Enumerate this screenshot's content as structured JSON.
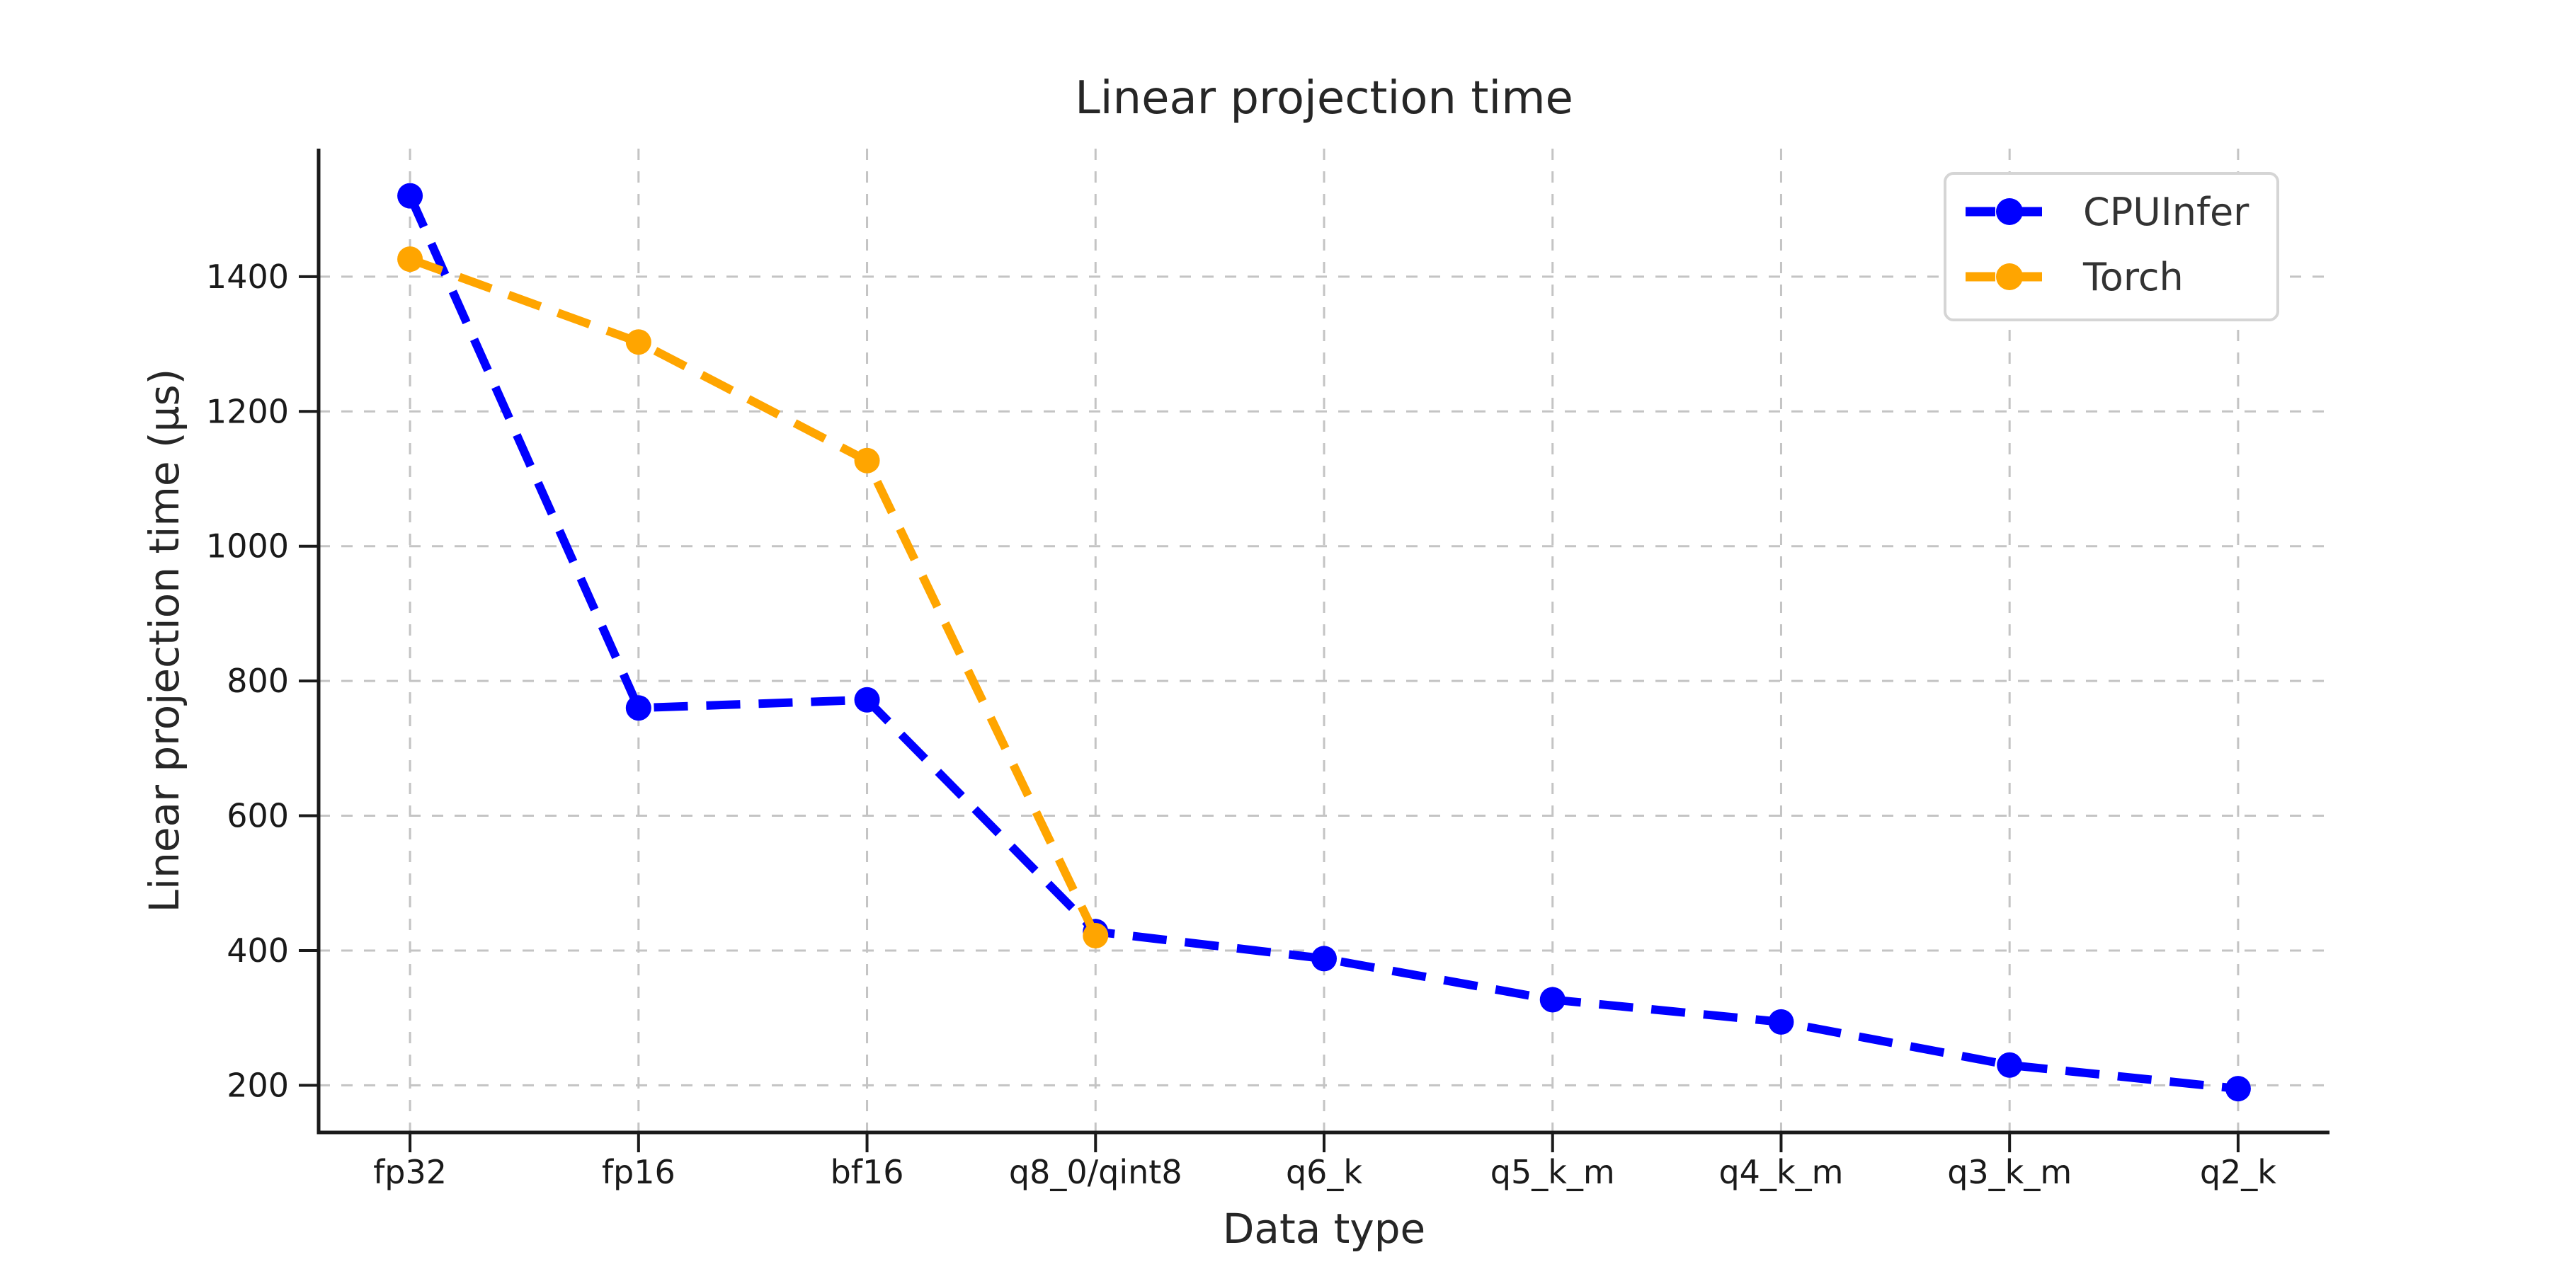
{
  "chart_data": {
    "type": "line",
    "title": "Linear projection time",
    "xlabel": "Data type",
    "ylabel": "Linear projection time (µs)",
    "categories": [
      "fp32",
      "fp16",
      "bf16",
      "q8_0/qint8",
      "q6_k",
      "q5_k_m",
      "q4_k_m",
      "q3_k_m",
      "q2_k"
    ],
    "series": [
      {
        "name": "CPUInfer",
        "color": "#0000ff",
        "values": [
          1520,
          760,
          772,
          428,
          388,
          327,
          294,
          230,
          195
        ]
      },
      {
        "name": "Torch",
        "color": "#ffa500",
        "values": [
          1426,
          1303,
          1127,
          422,
          null,
          null,
          null,
          null,
          null
        ]
      }
    ],
    "y_ticks": [
      200,
      400,
      600,
      800,
      1000,
      1200,
      1400
    ],
    "ylim": [
      130,
      1590
    ],
    "grid": true,
    "grid_color": "#c4c4c4",
    "spine_color": "#1a1a1a",
    "line_style": "dashed",
    "marker": "circle",
    "legend_position": "upper right",
    "legend_border_color": "#d5d5d5"
  }
}
